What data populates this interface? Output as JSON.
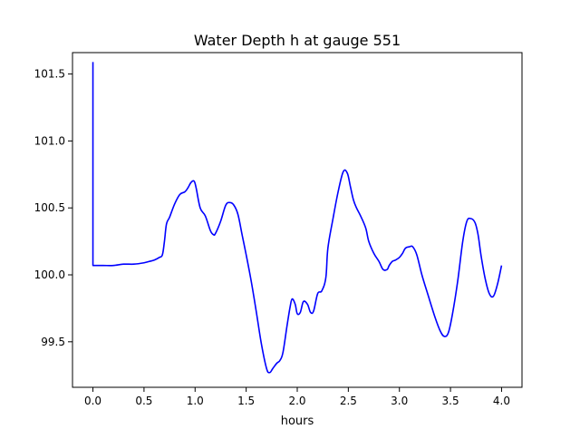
{
  "chart_data": {
    "type": "line",
    "title": "Water Depth h at gauge 551",
    "xlabel": "hours",
    "ylabel": "",
    "xlim": [
      -0.2,
      4.2
    ],
    "ylim": [
      99.16,
      101.66
    ],
    "x_ticks": [
      0.0,
      0.5,
      1.0,
      1.5,
      2.0,
      2.5,
      3.0,
      3.5,
      4.0
    ],
    "x_tick_labels": [
      "0.0",
      "0.5",
      "1.0",
      "1.5",
      "2.0",
      "2.5",
      "3.0",
      "3.5",
      "4.0"
    ],
    "y_ticks": [
      99.5,
      100.0,
      100.5,
      101.0,
      101.5
    ],
    "y_tick_labels": [
      "99.5",
      "100.0",
      "100.5",
      "101.0",
      "101.5"
    ],
    "grid": false,
    "legend": "none",
    "series": [
      {
        "color": "#0000ff",
        "x": [
          0.0,
          0.0,
          0.0,
          0.1,
          0.2,
          0.3,
          0.4,
          0.5,
          0.55,
          0.6,
          0.65,
          0.68,
          0.7,
          0.72,
          0.75,
          0.8,
          0.85,
          0.9,
          0.93,
          0.96,
          0.99,
          1.01,
          1.05,
          1.1,
          1.15,
          1.18,
          1.2,
          1.25,
          1.3,
          1.34,
          1.38,
          1.42,
          1.46,
          1.5,
          1.55,
          1.6,
          1.65,
          1.7,
          1.73,
          1.76,
          1.8,
          1.83,
          1.86,
          1.9,
          1.93,
          1.95,
          1.98,
          2.0,
          2.03,
          2.06,
          2.1,
          2.13,
          2.16,
          2.2,
          2.24,
          2.28,
          2.3,
          2.35,
          2.4,
          2.45,
          2.49,
          2.52,
          2.55,
          2.58,
          2.62,
          2.67,
          2.7,
          2.75,
          2.8,
          2.84,
          2.88,
          2.9,
          2.93,
          2.96,
          3.0,
          3.03,
          3.06,
          3.1,
          3.13,
          3.17,
          3.22,
          3.28,
          3.35,
          3.4,
          3.44,
          3.48,
          3.52,
          3.57,
          3.62,
          3.66,
          3.7,
          3.74,
          3.77,
          3.8,
          3.84,
          3.88,
          3.92,
          3.96,
          4.0
        ],
        "y": [
          101.59,
          100.07,
          100.07,
          100.07,
          100.07,
          100.08,
          100.08,
          100.09,
          100.1,
          100.11,
          100.13,
          100.15,
          100.25,
          100.38,
          100.43,
          100.53,
          100.6,
          100.62,
          100.65,
          100.69,
          100.7,
          100.65,
          100.5,
          100.44,
          100.33,
          100.3,
          100.31,
          100.4,
          100.52,
          100.54,
          100.52,
          100.45,
          100.3,
          100.15,
          99.95,
          99.72,
          99.48,
          99.3,
          99.27,
          99.3,
          99.34,
          99.36,
          99.42,
          99.62,
          99.76,
          99.82,
          99.78,
          99.71,
          99.72,
          99.8,
          99.78,
          99.72,
          99.73,
          99.86,
          99.88,
          99.98,
          100.2,
          100.42,
          100.62,
          100.77,
          100.76,
          100.66,
          100.56,
          100.5,
          100.44,
          100.35,
          100.25,
          100.16,
          100.1,
          100.04,
          100.04,
          100.07,
          100.1,
          100.11,
          100.13,
          100.16,
          100.2,
          100.21,
          100.21,
          100.15,
          100.0,
          99.85,
          99.68,
          99.58,
          99.54,
          99.57,
          99.71,
          99.95,
          100.25,
          100.4,
          100.42,
          100.39,
          100.3,
          100.14,
          99.97,
          99.86,
          99.84,
          99.93,
          100.07
        ]
      }
    ]
  }
}
